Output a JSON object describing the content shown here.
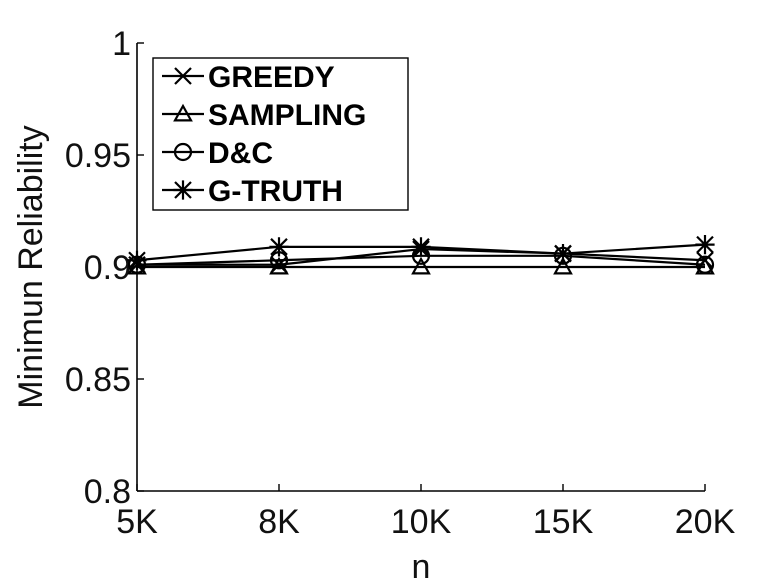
{
  "chart_data": {
    "type": "line",
    "categories": [
      "5K",
      "8K",
      "10K",
      "15K",
      "20K"
    ],
    "xlabel": "n",
    "ylabel": "Minimun Reliability",
    "ylim": [
      0.8,
      1.0
    ],
    "yticks": [
      "0.8",
      "0.85",
      "0.9",
      "0.95",
      "1"
    ],
    "ytick_values": [
      0.8,
      0.85,
      0.9,
      0.95,
      1.0
    ],
    "grid": false,
    "legend_position": "top-left",
    "reference_line": {
      "value": 0.9,
      "style": "dashed"
    },
    "series": [
      {
        "name": "GREEDY",
        "marker": "x",
        "values": [
          0.901,
          0.901,
          0.908,
          0.906,
          0.903
        ]
      },
      {
        "name": "SAMPLING",
        "marker": "triangle",
        "values": [
          0.9,
          0.9,
          0.9,
          0.9,
          0.9
        ]
      },
      {
        "name": "D&C",
        "marker": "circle",
        "values": [
          0.901,
          0.903,
          0.905,
          0.905,
          0.901
        ]
      },
      {
        "name": "G-TRUTH",
        "marker": "star",
        "values": [
          0.903,
          0.909,
          0.909,
          0.906,
          0.91
        ]
      }
    ],
    "color": "#000000"
  }
}
